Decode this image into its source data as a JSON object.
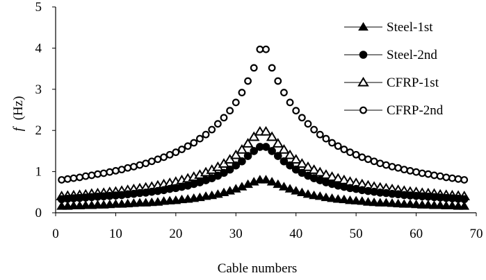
{
  "chart_data": {
    "type": "scatter",
    "title": "",
    "xlabel": "Cable numbers",
    "ylabel_italic": "f",
    "ylabel_unit": "(Hz)",
    "xlim": [
      0,
      70
    ],
    "ylim": [
      0,
      5
    ],
    "x_ticks": [
      "0",
      "10",
      "20",
      "30",
      "40",
      "50",
      "60",
      "70"
    ],
    "y_ticks": [
      "0",
      "1",
      "2",
      "3",
      "4",
      "5"
    ],
    "grid": false,
    "legend_position": "top-right",
    "x": [
      1,
      2,
      3,
      4,
      5,
      6,
      7,
      8,
      9,
      10,
      11,
      12,
      13,
      14,
      15,
      16,
      17,
      18,
      19,
      20,
      21,
      22,
      23,
      24,
      25,
      26,
      27,
      28,
      29,
      30,
      31,
      32,
      33,
      34,
      35,
      36,
      37,
      38,
      39,
      40,
      41,
      42,
      43,
      44,
      45,
      46,
      47,
      48,
      49,
      50,
      51,
      52,
      53,
      54,
      55,
      56,
      57,
      58,
      59,
      60,
      61,
      62,
      63,
      64,
      65,
      66,
      67,
      68
    ],
    "series": [
      {
        "name": "Steel-1st",
        "marker": "triangle-filled",
        "values": [
          0.16,
          0.16,
          0.17,
          0.17,
          0.18,
          0.18,
          0.19,
          0.19,
          0.2,
          0.21,
          0.21,
          0.22,
          0.23,
          0.24,
          0.24,
          0.25,
          0.26,
          0.28,
          0.29,
          0.3,
          0.32,
          0.33,
          0.35,
          0.37,
          0.4,
          0.42,
          0.45,
          0.49,
          0.53,
          0.58,
          0.63,
          0.69,
          0.75,
          0.8,
          0.8,
          0.75,
          0.69,
          0.63,
          0.58,
          0.53,
          0.49,
          0.45,
          0.42,
          0.4,
          0.37,
          0.35,
          0.33,
          0.32,
          0.3,
          0.29,
          0.28,
          0.26,
          0.25,
          0.24,
          0.24,
          0.23,
          0.22,
          0.21,
          0.21,
          0.2,
          0.19,
          0.19,
          0.18,
          0.18,
          0.17,
          0.17,
          0.16,
          0.16
        ]
      },
      {
        "name": "Steel-2nd",
        "marker": "circle-filled",
        "values": [
          0.33,
          0.34,
          0.35,
          0.36,
          0.37,
          0.38,
          0.39,
          0.4,
          0.41,
          0.42,
          0.43,
          0.45,
          0.46,
          0.48,
          0.49,
          0.51,
          0.53,
          0.55,
          0.58,
          0.6,
          0.63,
          0.66,
          0.7,
          0.74,
          0.79,
          0.84,
          0.9,
          0.97,
          1.05,
          1.15,
          1.25,
          1.38,
          1.5,
          1.6,
          1.6,
          1.5,
          1.38,
          1.25,
          1.15,
          1.05,
          0.97,
          0.9,
          0.84,
          0.79,
          0.74,
          0.7,
          0.66,
          0.63,
          0.6,
          0.58,
          0.55,
          0.53,
          0.51,
          0.49,
          0.48,
          0.46,
          0.45,
          0.43,
          0.42,
          0.41,
          0.4,
          0.39,
          0.38,
          0.37,
          0.36,
          0.35,
          0.34,
          0.33
        ]
      },
      {
        "name": "CFRP-1st",
        "marker": "triangle-open",
        "values": [
          0.4,
          0.41,
          0.42,
          0.43,
          0.44,
          0.46,
          0.47,
          0.48,
          0.5,
          0.51,
          0.53,
          0.55,
          0.57,
          0.59,
          0.61,
          0.63,
          0.66,
          0.69,
          0.72,
          0.75,
          0.79,
          0.83,
          0.87,
          0.92,
          0.98,
          1.04,
          1.11,
          1.19,
          1.29,
          1.4,
          1.53,
          1.68,
          1.84,
          1.97,
          1.97,
          1.84,
          1.68,
          1.53,
          1.4,
          1.29,
          1.19,
          1.11,
          1.04,
          0.98,
          0.92,
          0.87,
          0.83,
          0.79,
          0.75,
          0.72,
          0.69,
          0.66,
          0.63,
          0.61,
          0.59,
          0.57,
          0.55,
          0.53,
          0.51,
          0.5,
          0.48,
          0.47,
          0.46,
          0.44,
          0.43,
          0.42,
          0.41,
          0.4
        ]
      },
      {
        "name": "CFRP-2nd",
        "marker": "circle-open",
        "values": [
          0.8,
          0.82,
          0.84,
          0.86,
          0.89,
          0.91,
          0.94,
          0.96,
          0.99,
          1.02,
          1.05,
          1.09,
          1.12,
          1.16,
          1.2,
          1.25,
          1.3,
          1.35,
          1.41,
          1.47,
          1.54,
          1.62,
          1.7,
          1.8,
          1.9,
          2.02,
          2.16,
          2.31,
          2.48,
          2.68,
          2.92,
          3.2,
          3.52,
          3.97,
          3.97,
          3.52,
          3.2,
          2.92,
          2.68,
          2.48,
          2.31,
          2.16,
          2.02,
          1.9,
          1.8,
          1.7,
          1.62,
          1.54,
          1.47,
          1.41,
          1.35,
          1.3,
          1.25,
          1.2,
          1.16,
          1.12,
          1.09,
          1.05,
          1.02,
          0.99,
          0.96,
          0.94,
          0.91,
          0.89,
          0.86,
          0.84,
          0.82,
          0.8
        ]
      }
    ]
  }
}
